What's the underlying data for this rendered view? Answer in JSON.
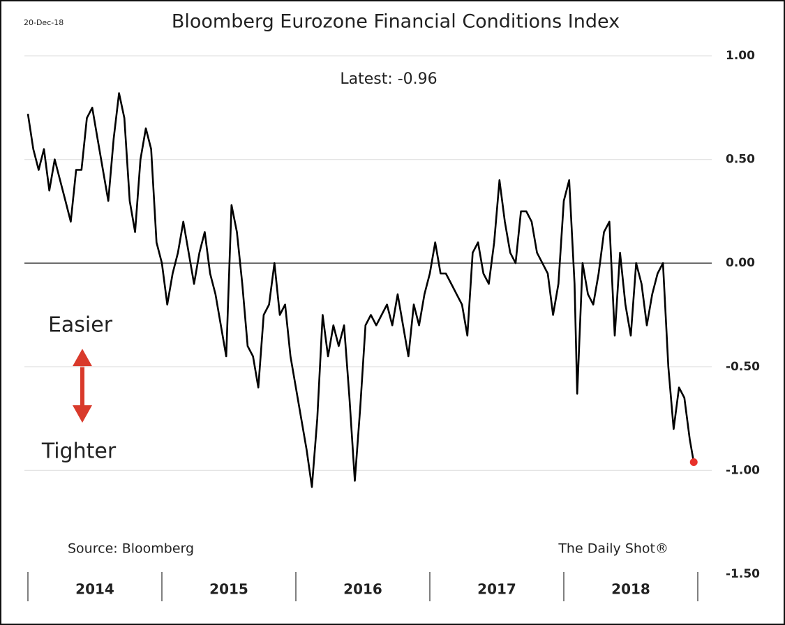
{
  "chart_data": {
    "type": "line",
    "title": "Bloomberg Eurozone Financial Conditions Index",
    "date_label": "20-Dec-18",
    "latest_label": "Latest:  -0.96",
    "easier_label": "Easier",
    "tighter_label": "Tighter",
    "source": "Source: Bloomberg",
    "credit": "The Daily Shot®",
    "color": "#000000",
    "marker_color": "#e8312a",
    "grid": true,
    "xlim": [
      2014,
      2019
    ],
    "xticks": [
      2014,
      2015,
      2016,
      2017,
      2018,
      2019
    ],
    "year_labels": [
      "2014",
      "2015",
      "2016",
      "2017",
      "2018"
    ],
    "ylim": [
      -1.5,
      1.0
    ],
    "yticks": [
      {
        "value": -1.5,
        "label": "-1.50"
      },
      {
        "value": -1,
        "label": "-1.00"
      },
      {
        "value": -0.5,
        "label": "-0.50"
      },
      {
        "value": 0,
        "label": "0.00"
      },
      {
        "value": 0.5,
        "label": "0.50"
      },
      {
        "value": 1,
        "label": "1.00"
      }
    ],
    "x": [
      2014.0,
      2014.04,
      2014.08,
      2014.12,
      2014.16,
      2014.2,
      2014.24,
      2014.28,
      2014.32,
      2014.36,
      2014.4,
      2014.44,
      2014.48,
      2014.52,
      2014.56,
      2014.6,
      2014.64,
      2014.68,
      2014.72,
      2014.76,
      2014.8,
      2014.84,
      2014.88,
      2014.92,
      2014.96,
      2015.0,
      2015.04,
      2015.08,
      2015.12,
      2015.16,
      2015.2,
      2015.24,
      2015.28,
      2015.32,
      2015.36,
      2015.4,
      2015.44,
      2015.48,
      2015.52,
      2015.56,
      2015.6,
      2015.64,
      2015.68,
      2015.72,
      2015.76,
      2015.8,
      2015.84,
      2015.88,
      2015.92,
      2015.96,
      2016.0,
      2016.04,
      2016.08,
      2016.12,
      2016.16,
      2016.2,
      2016.24,
      2016.28,
      2016.32,
      2016.36,
      2016.4,
      2016.44,
      2016.48,
      2016.52,
      2016.56,
      2016.6,
      2016.64,
      2016.68,
      2016.72,
      2016.76,
      2016.8,
      2016.84,
      2016.88,
      2016.92,
      2016.96,
      2017.0,
      2017.04,
      2017.08,
      2017.12,
      2017.16,
      2017.2,
      2017.24,
      2017.28,
      2017.32,
      2017.36,
      2017.4,
      2017.44,
      2017.48,
      2017.52,
      2017.56,
      2017.6,
      2017.64,
      2017.68,
      2017.72,
      2017.76,
      2017.8,
      2017.84,
      2017.88,
      2017.92,
      2017.96,
      2018.0,
      2018.04,
      2018.08,
      2018.1,
      2018.14,
      2018.18,
      2018.22,
      2018.26,
      2018.3,
      2018.34,
      2018.38,
      2018.42,
      2018.46,
      2018.5,
      2018.54,
      2018.58,
      2018.62,
      2018.66,
      2018.7,
      2018.74,
      2018.78,
      2018.82,
      2018.86,
      2018.9,
      2018.94,
      2018.97
    ],
    "values": [
      0.72,
      0.55,
      0.45,
      0.55,
      0.35,
      0.5,
      0.4,
      0.3,
      0.2,
      0.45,
      0.45,
      0.7,
      0.75,
      0.6,
      0.45,
      0.3,
      0.6,
      0.82,
      0.7,
      0.3,
      0.15,
      0.5,
      0.65,
      0.55,
      0.1,
      0.0,
      -0.2,
      -0.05,
      0.05,
      0.2,
      0.05,
      -0.1,
      0.05,
      0.15,
      -0.05,
      -0.15,
      -0.3,
      -0.45,
      0.28,
      0.15,
      -0.1,
      -0.4,
      -0.45,
      -0.6,
      -0.25,
      -0.2,
      0.0,
      -0.25,
      -0.2,
      -0.45,
      -0.6,
      -0.75,
      -0.9,
      -1.08,
      -0.75,
      -0.25,
      -0.45,
      -0.3,
      -0.4,
      -0.3,
      -0.65,
      -1.05,
      -0.7,
      -0.3,
      -0.25,
      -0.3,
      -0.25,
      -0.2,
      -0.3,
      -0.15,
      -0.3,
      -0.45,
      -0.2,
      -0.3,
      -0.15,
      -0.05,
      0.1,
      -0.05,
      -0.05,
      -0.1,
      -0.15,
      -0.2,
      -0.35,
      0.05,
      0.1,
      -0.05,
      -0.1,
      0.1,
      0.4,
      0.2,
      0.05,
      0.0,
      0.25,
      0.25,
      0.2,
      0.05,
      0.0,
      -0.05,
      -0.25,
      -0.1,
      0.3,
      0.4,
      -0.1,
      -0.63,
      0.0,
      -0.15,
      -0.2,
      -0.05,
      0.15,
      0.2,
      -0.35,
      0.05,
      -0.2,
      -0.35,
      0.0,
      -0.1,
      -0.3,
      -0.15,
      -0.05,
      0.0,
      -0.5,
      -0.8,
      -0.6,
      -0.65,
      -0.85,
      -0.96
    ]
  }
}
